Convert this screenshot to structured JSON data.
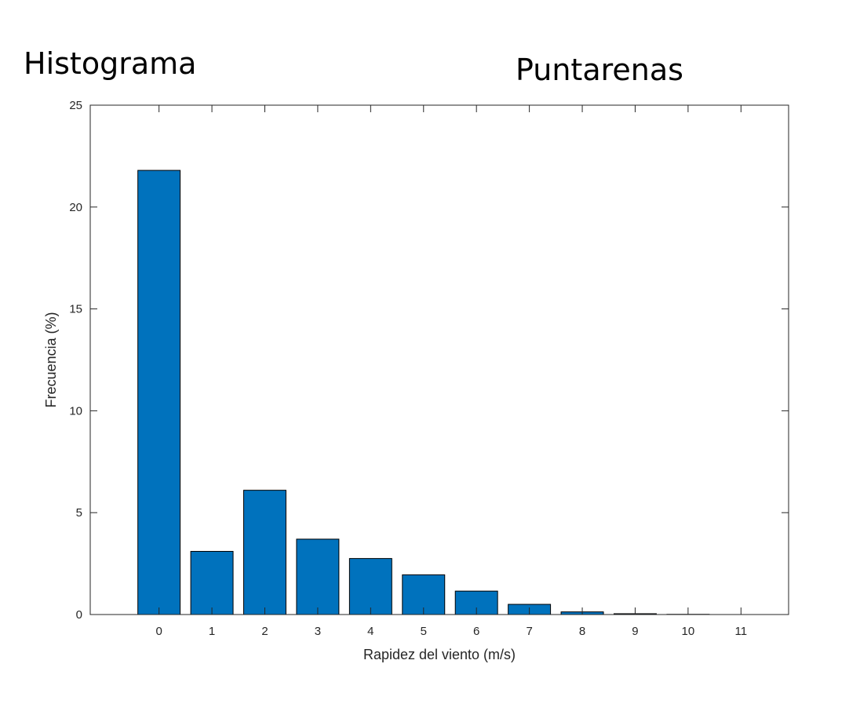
{
  "chart_data": {
    "type": "bar",
    "title_left": "Histograma",
    "title_right": "Puntarenas",
    "xlabel": "Rapidez del viento (m/s)",
    "ylabel": "Frecuencia (%)",
    "categories": [
      "0",
      "1",
      "2",
      "3",
      "4",
      "5",
      "6",
      "7",
      "8",
      "9",
      "10",
      "11"
    ],
    "values": [
      21.8,
      3.1,
      6.1,
      3.7,
      2.75,
      1.95,
      1.15,
      0.5,
      0.13,
      0.04,
      0.01,
      0
    ],
    "xlim": [
      -1.3,
      11.9
    ],
    "ylim": [
      0,
      25
    ],
    "yticks": [
      0,
      5,
      10,
      15,
      20,
      25
    ],
    "bar_color": "#0072BD",
    "bar_edge_color": "#000000",
    "axis_color": "#262626",
    "grid": false
  }
}
